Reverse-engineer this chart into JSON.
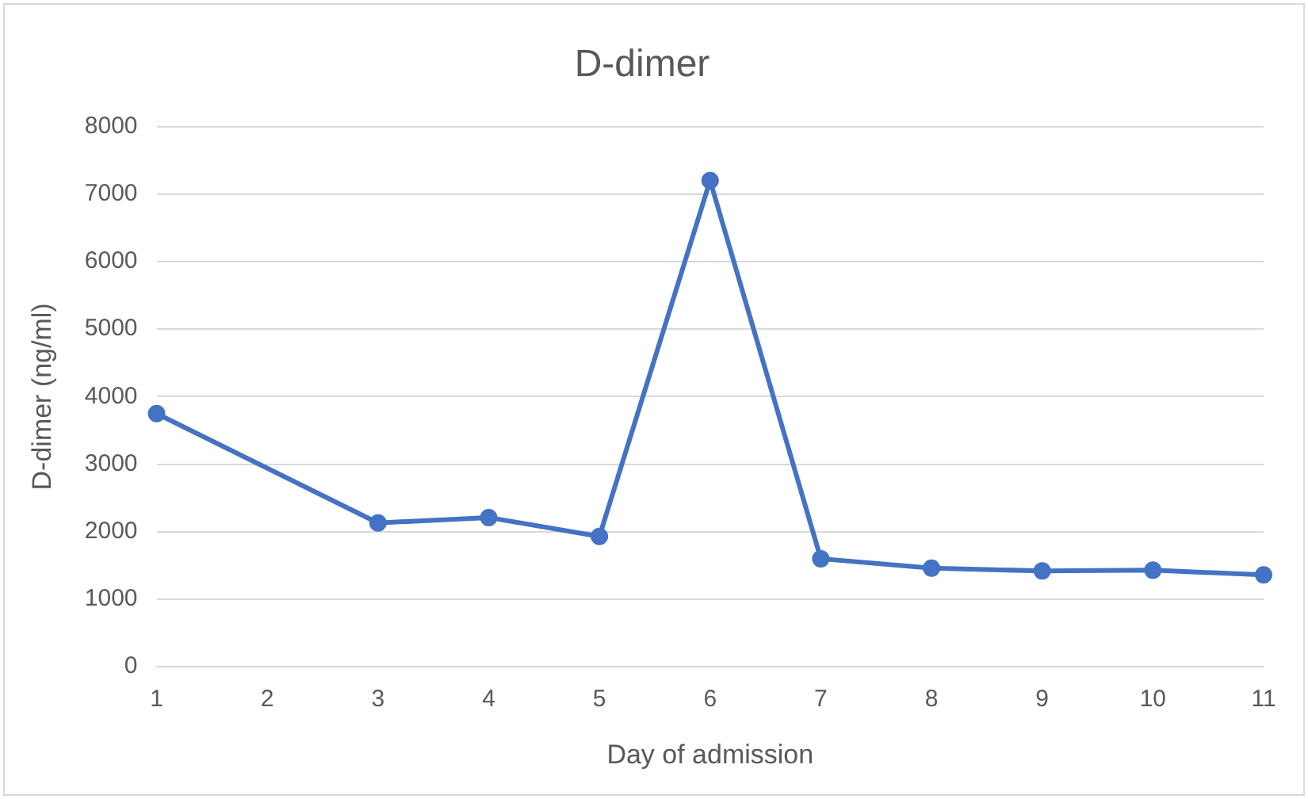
{
  "chart_data": {
    "type": "line",
    "title": "D-dimer",
    "xlabel": "Day of admission",
    "ylabel": "D-dimer (ng/ml)",
    "categories": [
      "1",
      "2",
      "3",
      "4",
      "5",
      "6",
      "7",
      "8",
      "9",
      "10",
      "11"
    ],
    "series": [
      {
        "color": "#4472c4",
        "values": [
          3750,
          null,
          2130,
          2210,
          1930,
          7200,
          1600,
          1460,
          1420,
          1430,
          1360
        ]
      }
    ],
    "ylim": [
      0,
      8000
    ],
    "yticks": [
      0,
      1000,
      2000,
      3000,
      4000,
      5000,
      6000,
      7000,
      8000
    ],
    "grid": "y",
    "legend": false,
    "marker": "circle",
    "line_style": "solid"
  }
}
